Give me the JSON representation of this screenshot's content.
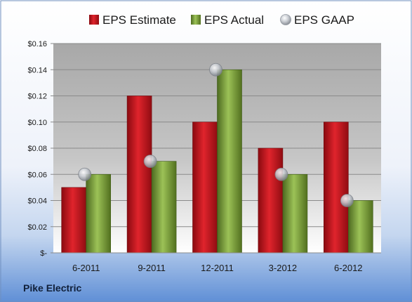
{
  "company": "Pike Electric",
  "colors": {
    "estimate": "#c8141e",
    "actual": "#7ea33c",
    "gaap": "#b4b8be"
  },
  "chart_data": {
    "type": "bar",
    "categories": [
      "6-2011",
      "9-2011",
      "12-2011",
      "3-2012",
      "6-2012"
    ],
    "series": [
      {
        "name": "EPS Estimate",
        "kind": "bar",
        "values": [
          0.05,
          0.12,
          0.1,
          0.08,
          0.1
        ]
      },
      {
        "name": "EPS Actual",
        "kind": "bar",
        "values": [
          0.06,
          0.07,
          0.14,
          0.06,
          0.04
        ]
      },
      {
        "name": "EPS GAAP",
        "kind": "marker",
        "values": [
          0.06,
          0.07,
          0.14,
          0.06,
          0.04
        ]
      }
    ],
    "yticks": [
      {
        "value": 0.16,
        "label": "$0.16"
      },
      {
        "value": 0.14,
        "label": "$0.14"
      },
      {
        "value": 0.12,
        "label": "$0.12"
      },
      {
        "value": 0.1,
        "label": "$0.10"
      },
      {
        "value": 0.08,
        "label": "$0.08"
      },
      {
        "value": 0.06,
        "label": "$0.06"
      },
      {
        "value": 0.04,
        "label": "$0.04"
      },
      {
        "value": 0.02,
        "label": "$0.02"
      },
      {
        "value": 0.0,
        "label": "$-"
      }
    ],
    "ylim": [
      0,
      0.16
    ],
    "grid": true,
    "legend_position": "top",
    "title": "",
    "xlabel": "",
    "ylabel": ""
  }
}
